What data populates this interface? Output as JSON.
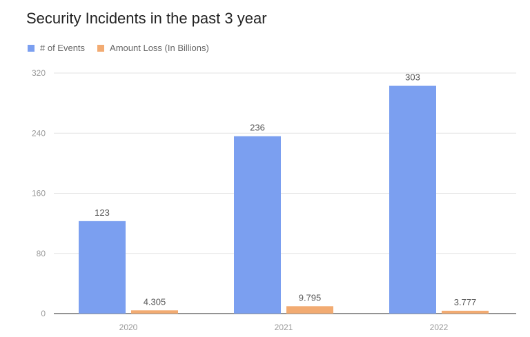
{
  "chart_data": {
    "type": "bar",
    "title": "Security Incidents in the past 3 year",
    "categories": [
      "2020",
      "2021",
      "2022"
    ],
    "series": [
      {
        "name": "# of Events",
        "values": [
          123,
          236,
          303
        ],
        "labels": [
          "123",
          "236",
          "303"
        ],
        "color": "#7b9ff0"
      },
      {
        "name": "Amount Loss (In Billions)",
        "values": [
          4.305,
          9.795,
          3.777
        ],
        "labels": [
          "4.305",
          "9.795",
          "3.777"
        ],
        "color": "#f2ab72"
      }
    ],
    "yticks": [
      "0",
      "80",
      "160",
      "240",
      "320"
    ],
    "ylim": [
      0,
      320
    ],
    "grid": true,
    "legend": "top-left",
    "xlabel": "",
    "ylabel": ""
  }
}
